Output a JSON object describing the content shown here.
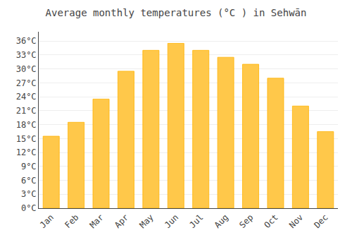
{
  "chart_data": {
    "type": "bar",
    "title": "Average monthly temperatures (°C ) in Sehwān",
    "categories": [
      "Jan",
      "Feb",
      "Mar",
      "Apr",
      "May",
      "Jun",
      "Jul",
      "Aug",
      "Sep",
      "Oct",
      "Nov",
      "Dec"
    ],
    "values": [
      15.5,
      18.5,
      23.5,
      29.5,
      34.0,
      35.5,
      34.0,
      32.5,
      31.0,
      28.0,
      22.0,
      16.5
    ],
    "color": "#FFC84A",
    "ylim": [
      0,
      38
    ],
    "yticks": [
      {
        "value": 0,
        "label": "0°C"
      },
      {
        "value": 3,
        "label": "3°C"
      },
      {
        "value": 6,
        "label": "6°C"
      },
      {
        "value": 9,
        "label": "9°C"
      },
      {
        "value": 12,
        "label": "12°C"
      },
      {
        "value": 15,
        "label": "15°C"
      },
      {
        "value": 18,
        "label": "18°C"
      },
      {
        "value": 21,
        "label": "21°C"
      },
      {
        "value": 24,
        "label": "24°C"
      },
      {
        "value": 27,
        "label": "27°C"
      },
      {
        "value": 30,
        "label": "30°C"
      },
      {
        "value": 33,
        "label": "33°C"
      },
      {
        "value": 36,
        "label": "36°C"
      }
    ],
    "grid": true
  }
}
